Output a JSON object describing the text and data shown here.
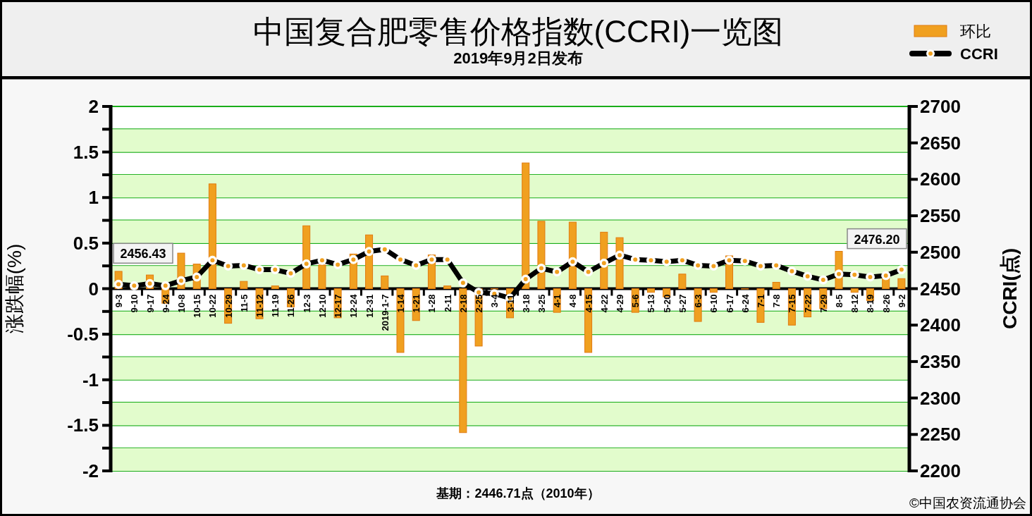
{
  "chart_data": {
    "type": "bar",
    "title": "中国复合肥零售价格指数(CCRI)一览图",
    "subtitle": "2019年9月2日发布",
    "ylabel": "涨跌幅(%)",
    "y2label": "CCRI(点)",
    "categories": [
      "9-3",
      "9-10",
      "9-17",
      "9-24",
      "10-8",
      "10-15",
      "10-22",
      "10-29",
      "11-5",
      "11-12",
      "11-19",
      "11-26",
      "12-3",
      "12-10",
      "12-17",
      "12-24",
      "12-31",
      "2019-1-7",
      "1-14",
      "1-21",
      "1-28",
      "2-11",
      "2-18",
      "2-25",
      "3-4",
      "3-11",
      "3-18",
      "3-25",
      "4-1",
      "4-8",
      "4-15",
      "4-22",
      "4-29",
      "5-6",
      "5-13",
      "5-20",
      "5-27",
      "6-3",
      "6-10",
      "6-17",
      "6-24",
      "7-1",
      "7-8",
      "7-15",
      "7-22",
      "7-29",
      "8-5",
      "8-12",
      "8-19",
      "8-26",
      "9-2"
    ],
    "series": [
      {
        "name": "环比",
        "color": "#f0a020",
        "values": [
          0.19,
          0,
          0.15,
          -0.16,
          0.39,
          0.27,
          1.15,
          -0.38,
          0.08,
          -0.33,
          0.03,
          -0.2,
          0.69,
          0.26,
          -0.32,
          0.38,
          0.59,
          0.14,
          -0.7,
          -0.35,
          0.37,
          0.03,
          -1.58,
          -0.63,
          0,
          -0.32,
          1.38,
          0.74,
          -0.26,
          0.73,
          -0.7,
          0.62,
          0.56,
          -0.26,
          -0.04,
          -0.09,
          0.16,
          -0.36,
          -0.04,
          0.36,
          0,
          -0.37,
          0.07,
          -0.4,
          -0.31,
          -0.22,
          0.41,
          -0.04,
          -0.13,
          0.14,
          0.11
        ]
      },
      {
        "name": "CCRI",
        "type": "line",
        "axis": "y2",
        "color": "#000000",
        "values": [
          2456,
          2454,
          2457,
          2454,
          2461,
          2466,
          2489,
          2481,
          2482,
          2476,
          2476,
          2471,
          2484,
          2489,
          2483,
          2490,
          2501,
          2504,
          2490,
          2482,
          2490,
          2490,
          2458,
          2445,
          2443,
          2437,
          2463,
          2478,
          2473,
          2487,
          2473,
          2485,
          2496,
          2490,
          2489,
          2487,
          2489,
          2482,
          2481,
          2489,
          2488,
          2481,
          2482,
          2474,
          2467,
          2462,
          2470,
          2469,
          2466,
          2468,
          2476
        ]
      }
    ],
    "ylim": [
      -2,
      2
    ],
    "yticks": [
      -2,
      {
        "value": -1.75,
        "label": null
      },
      -1.5,
      {
        "value": -1.25,
        "label": null
      },
      -1,
      {
        "value": -0.75,
        "label": null
      },
      -0.5,
      {
        "value": -0.25,
        "label": null
      },
      0,
      {
        "value": 0.25,
        "label": null
      },
      0.5,
      {
        "value": 0.75,
        "label": null
      },
      1,
      {
        "value": 1.25,
        "label": null
      },
      1.5,
      {
        "value": 1.75,
        "label": null
      },
      2
    ],
    "y2lim": [
      2200,
      2700
    ],
    "y2ticks": [
      2200,
      2250,
      2300,
      2350,
      2400,
      2450,
      2500,
      2550,
      2600,
      2650,
      2700
    ],
    "bands": [
      {
        "axis": "y",
        "from": 1.5,
        "to": 1.75,
        "color": "#e2fccc"
      },
      {
        "axis": "y",
        "from": 1,
        "to": 1.25,
        "color": "#e2fccc"
      },
      {
        "axis": "y",
        "from": 0.5,
        "to": 0.75,
        "color": "#e2fccc"
      },
      {
        "axis": "y",
        "from": 0,
        "to": 0.25,
        "color": "#e2fccc"
      },
      {
        "axis": "y",
        "from": -0.5,
        "to": -0.25,
        "color": "#e2fccc"
      },
      {
        "axis": "y",
        "from": -1,
        "to": -0.75,
        "color": "#e2fccc"
      },
      {
        "axis": "y",
        "from": -1.5,
        "to": -1.25,
        "color": "#e2fccc"
      },
      {
        "axis": "y",
        "from": -2,
        "to": -1.75,
        "color": "#e2fccc"
      }
    ],
    "grid": "y",
    "legend": "top right",
    "marker": "circle",
    "annotations": [
      "2456.43",
      "2476.20",
      "基期：2446.71点（2010年）",
      "©中国农资流通协会"
    ]
  }
}
